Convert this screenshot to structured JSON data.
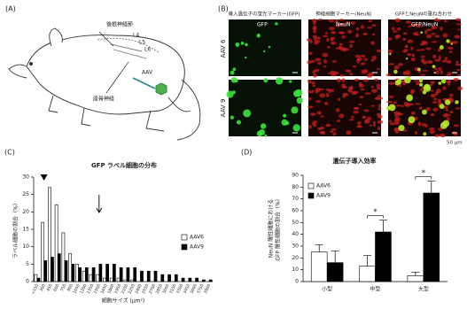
{
  "panel_a": {
    "label": "(A)",
    "texts": {
      "drg": "後根神経節",
      "l4": "L4",
      "l5": "L5",
      "l6": "L6",
      "aav": "AAV",
      "nerve": "座骨神経"
    }
  },
  "panel_b": {
    "label": "(B)",
    "columns": [
      "導入遺伝子の蛍光マーカー(GFP)",
      "神経細胞マーカー(NeuN)",
      "GFPとNeuNの重ね合わせ"
    ],
    "rows": [
      "AAV 6",
      "AAV 9"
    ],
    "image_labels": [
      "GFP",
      "NeuN",
      "GFP/NeuN"
    ],
    "scale_bar": "50 μm"
  },
  "chart_data": [
    {
      "type": "bar",
      "panel_label": "(C)",
      "title": "GFP ラベル細胞の分布",
      "y_label": "ラベル細胞の割合（%）",
      "x_label": "細胞サイズ (μm²)",
      "categories": [
        "<150",
        "300",
        "450",
        "600",
        "750",
        "900",
        "1050",
        "1200",
        "1350",
        "1500",
        "1650",
        "1800",
        "1950",
        "2100",
        "2250",
        "2400",
        "2550",
        "2700",
        "2850",
        "3000",
        "3150",
        "3300",
        "3450",
        "3600",
        "3750",
        "3900"
      ],
      "series": [
        {
          "name": "AAV6",
          "color": "#ffffff",
          "values": [
            2,
            17,
            27,
            22,
            14,
            8,
            5,
            3,
            2,
            2,
            1,
            1,
            1,
            0.5,
            0.5,
            0,
            0,
            0,
            0,
            0,
            0,
            0,
            0,
            0,
            0,
            0
          ]
        },
        {
          "name": "AAV9",
          "color": "#000000",
          "values": [
            1,
            6,
            7,
            8,
            6,
            5,
            4,
            4,
            4,
            5,
            5,
            5,
            4,
            4,
            4,
            3,
            3,
            3,
            2,
            2,
            2,
            1,
            1,
            1,
            0.5,
            0.5
          ]
        }
      ],
      "ylim": [
        0,
        30
      ],
      "yticks": [
        0,
        5,
        10,
        15,
        20,
        25,
        30
      ],
      "legend": "right"
    },
    {
      "type": "bar",
      "panel_label": "(D)",
      "title": "遺伝子導入効率",
      "y_label": [
        "NeuN 陽性細胞における",
        "GFP 陽性細胞の割合（%）"
      ],
      "categories": [
        "小型",
        "中型",
        "大型"
      ],
      "series": [
        {
          "name": "AAV6",
          "color": "#ffffff",
          "values": [
            25,
            13,
            5
          ],
          "errors": [
            6,
            9,
            3
          ]
        },
        {
          "name": "AAV9",
          "color": "#000000",
          "values": [
            16,
            42,
            75
          ],
          "errors": [
            10,
            10,
            10
          ]
        }
      ],
      "annotations": [
        "*",
        "*"
      ],
      "ylim": [
        0,
        90
      ],
      "yticks": [
        0,
        10,
        20,
        30,
        40,
        50,
        60,
        70,
        80,
        90
      ],
      "legend": "upper left"
    }
  ]
}
